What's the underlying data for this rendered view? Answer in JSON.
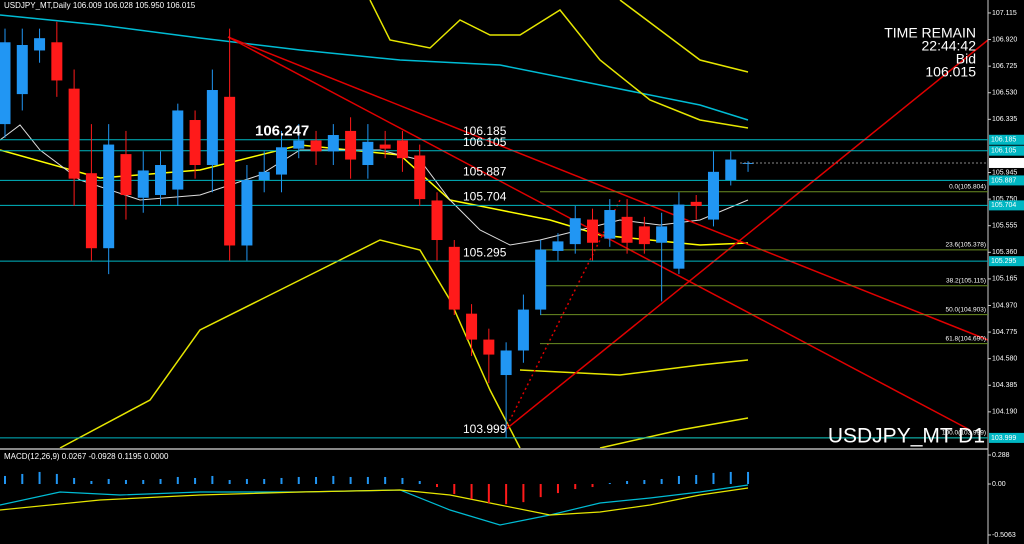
{
  "header": {
    "symbol_info": "USDJPY_MT,Daily  106.009 106.028 105.950 106.015"
  },
  "timer": {
    "title": "TIME REMAIN",
    "time": "22:44:42",
    "bid_label": "Bid",
    "bid": "106.015"
  },
  "watermark": "USDJPY_MT D1",
  "chart_data": [
    {
      "type": "candlestick",
      "open": [
        106.3,
        106.52,
        106.84,
        106.9,
        106.56,
        105.94,
        105.39,
        106.08,
        105.76,
        105.78,
        105.82,
        106.33,
        106.0,
        106.5,
        105.41,
        105.89,
        105.93,
        106.12,
        106.18,
        106.1,
        106.25,
        106.0,
        106.15,
        106.18,
        106.07,
        105.74,
        105.4,
        104.91,
        104.72,
        104.46,
        104.64,
        104.94,
        105.37,
        105.42,
        105.6,
        105.46,
        105.62,
        105.55,
        105.43,
        105.24,
        105.73,
        105.6,
        105.89,
        106.009
      ],
      "high": [
        107.0,
        107.0,
        107.0,
        107.05,
        106.7,
        106.3,
        106.3,
        106.25,
        106.1,
        106.1,
        106.45,
        106.4,
        106.7,
        107.0,
        106.0,
        106.1,
        106.25,
        106.3,
        106.25,
        106.3,
        106.35,
        106.3,
        106.25,
        106.25,
        106.15,
        105.8,
        105.45,
        104.98,
        104.8,
        104.7,
        105.05,
        105.45,
        105.5,
        105.7,
        105.68,
        105.75,
        105.75,
        105.62,
        105.65,
        105.8,
        105.78,
        106.1,
        106.1,
        106.028
      ],
      "low": [
        106.2,
        106.4,
        106.75,
        106.5,
        105.7,
        105.3,
        105.2,
        105.6,
        105.65,
        105.7,
        105.7,
        105.9,
        105.8,
        105.3,
        105.3,
        105.8,
        105.8,
        106.05,
        106.0,
        106.0,
        105.9,
        105.9,
        106.05,
        105.95,
        105.7,
        105.3,
        104.9,
        104.6,
        104.4,
        103.999,
        104.55,
        104.9,
        105.3,
        105.35,
        105.3,
        105.4,
        105.35,
        105.35,
        105.0,
        105.2,
        105.6,
        105.55,
        105.85,
        105.95
      ],
      "close": [
        106.9,
        106.88,
        106.93,
        106.62,
        105.9,
        105.39,
        106.15,
        105.78,
        105.96,
        106.0,
        106.4,
        106.0,
        106.55,
        105.41,
        105.89,
        105.95,
        106.13,
        106.18,
        106.1,
        106.22,
        106.04,
        106.17,
        106.12,
        106.05,
        105.75,
        105.45,
        104.94,
        104.72,
        104.61,
        104.64,
        104.94,
        105.38,
        105.44,
        105.61,
        105.43,
        105.67,
        105.43,
        105.42,
        105.55,
        105.71,
        105.7,
        105.95,
        106.04,
        106.015
      ],
      "up_color": "#2196f3",
      "down_color": "#ff1a1a",
      "ylim": [
        103.925,
        107.21
      ],
      "yticks": [
        107.115,
        {
          "value": 106.92,
          "label": "106.920"
        },
        106.725,
        {
          "value": 106.53,
          "label": "106.530"
        },
        106.335,
        105.945,
        {
          "value": 105.75,
          "label": "105.750"
        },
        105.555,
        {
          "value": 105.36,
          "label": "105.360"
        },
        105.165,
        {
          "value": 104.97,
          "label": "104.970"
        },
        104.775,
        {
          "value": 104.58,
          "label": "104.580"
        },
        104.385,
        {
          "value": 104.19,
          "label": "104.190"
        }
      ],
      "high_label": 106.247,
      "levels": [
        106.185,
        106.105,
        105.887,
        105.704,
        105.295,
        103.999
      ],
      "level_color": "#00b7c3",
      "current_price": 106.015,
      "fib_levels": [
        {
          "value": 105.804,
          "label": "0.0(105.804)"
        },
        {
          "value": 105.378,
          "label": "23.6(105.378)"
        },
        {
          "value": 105.115,
          "label": "38.2(105.115)"
        },
        {
          "value": 104.903,
          "label": "50.0(104.903)"
        },
        {
          "value": 104.69,
          "label": "61.8(104.690)"
        },
        {
          "value": 103.999,
          "label": "100.0(103.999)"
        }
      ],
      "fib_color": "#6b8e23"
    },
    {
      "type": "bar",
      "label": "MACD(12,26,9) 0.0267 -0.0928 0.1195 0.0000",
      "values": [
        0.08,
        0.1,
        0.12,
        0.1,
        0.06,
        0.03,
        0.05,
        0.04,
        0.04,
        0.05,
        0.07,
        0.06,
        0.08,
        0.04,
        0.05,
        0.05,
        0.06,
        0.07,
        0.07,
        0.08,
        0.07,
        0.07,
        0.07,
        0.06,
        0.03,
        -0.03,
        -0.1,
        -0.15,
        -0.19,
        -0.2,
        -0.18,
        -0.13,
        -0.09,
        -0.05,
        -0.03,
        0.01,
        0.03,
        0.04,
        0.05,
        0.08,
        0.09,
        0.11,
        0.12,
        0.12
      ],
      "up_color": "#2196f3",
      "down_color": "#ff1a1a",
      "ylim": [
        -0.596,
        0.338
      ],
      "yticks": [
        0.288,
        {
          "value": 0,
          "label": "0.00"
        },
        -0.5063
      ]
    }
  ]
}
